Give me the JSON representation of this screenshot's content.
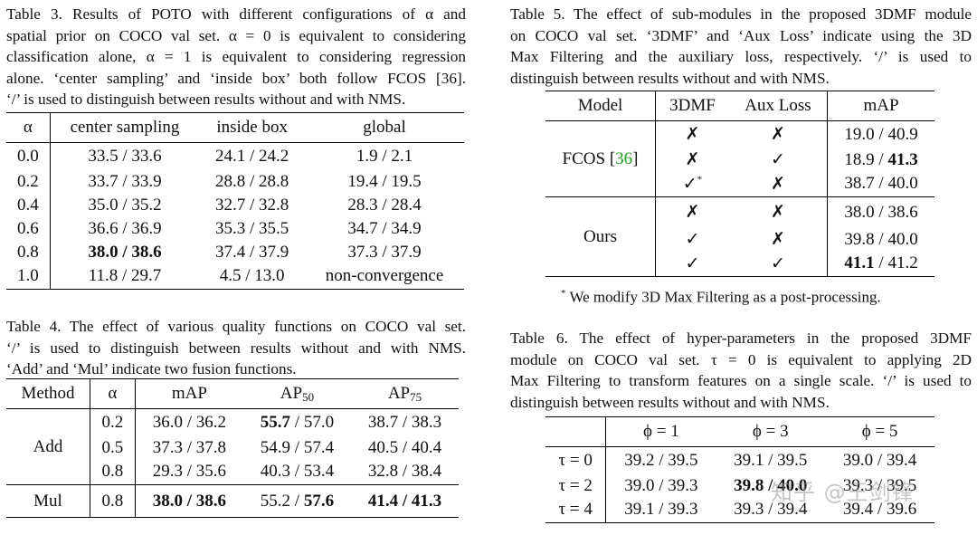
{
  "table3": {
    "caption": [
      "Table 3. Results of POTO with different configurations of α and",
      "spatial prior on COCO val set. α = 0 is equivalent to considering",
      "classification alone, α = 1 is equivalent to considering regression",
      "alone. ‘center sampling’ and ‘inside box’ both follow FCOS [36].",
      "‘/’ is used to distinguish between results without and with NMS."
    ],
    "headers": [
      "α",
      "center sampling",
      "inside box",
      "global"
    ],
    "rows": [
      [
        "0.0",
        "33.5 / 33.6",
        "24.1 / 24.2",
        "1.9 / 2.1"
      ],
      [
        "0.2",
        "33.7 / 33.9",
        "28.8 / 28.8",
        "19.4 / 19.5"
      ],
      [
        "0.4",
        "35.0 / 35.2",
        "32.7 / 32.8",
        "28.3 / 28.4"
      ],
      [
        "0.6",
        "36.6 / 36.9",
        "35.3 / 35.5",
        "34.7 / 34.9"
      ],
      [
        "0.8",
        "38.0 / 38.6",
        "37.4 / 37.9",
        "37.3 / 37.9"
      ],
      [
        "1.0",
        "11.8 / 29.7",
        "4.5 / 13.0",
        "non-convergence"
      ]
    ]
  },
  "table4": {
    "caption": [
      "Table 4. The effect of various quality functions on COCO val set.",
      "‘/’ is used to distinguish between results without and with NMS.",
      "‘Add’ and ‘Mul’ indicate two fusion functions."
    ],
    "headers": [
      "Method",
      "α",
      "mAP",
      "AP",
      "50",
      "AP",
      "75"
    ],
    "add_label": "Add",
    "add_rows": [
      [
        "0.2",
        "36.0 / 36.2",
        "55.7",
        " / 57.0",
        "38.7 / 38.3"
      ],
      [
        "0.5",
        "37.3 / 37.8",
        "54.9 / 57.4",
        "",
        "40.5 / 40.4"
      ],
      [
        "0.8",
        "29.3 / 35.6",
        "40.3 / 53.4",
        "",
        "32.8 / 38.4"
      ]
    ],
    "mul_label": "Mul",
    "mul_row": [
      "0.8",
      "38.0 / 38.6",
      "55.2 / ",
      "57.6",
      "41.4 / 41.3"
    ]
  },
  "table5": {
    "caption": [
      "Table 5. The effect of sub-modules in the proposed 3DMF module",
      "on COCO val set. ‘3DMF’ and ‘Aux Loss’ indicate using the 3D",
      "Max Filtering and the auxiliary loss, respectively. ‘/’ is used to",
      "distinguish between results without and with NMS."
    ],
    "headers": [
      "Model",
      "3DMF",
      "Aux Loss",
      "mAP"
    ],
    "fcos_label": "FCOS",
    "fcos_cite": "36",
    "fcos_rows": [
      {
        "dmf": "✗",
        "aux": "✗",
        "map_a": "19.0 / 40.9",
        "map_b": ""
      },
      {
        "dmf": "✗",
        "aux": "✓",
        "map_a": "18.9 / ",
        "map_b": "41.3"
      },
      {
        "dmf": "✓",
        "aux": "✗",
        "map_a": "38.7 / 40.0",
        "map_b": ""
      }
    ],
    "ours_label": "Ours",
    "ours_rows": [
      {
        "dmf": "✗",
        "aux": "✗",
        "map_a": "38.0 / 38.6",
        "map_b": ""
      },
      {
        "dmf": "✓",
        "aux": "✗",
        "map_a": "39.8 / 40.0",
        "map_b": ""
      },
      {
        "dmf": "✓",
        "aux": "✓",
        "map_a": "41.1",
        "map_b": " / 41.2"
      }
    ],
    "star": "*",
    "footnote": "We modify 3D Max Filtering as a post-processing."
  },
  "table6": {
    "caption": [
      "Table 6. The effect of hyper-parameters in the proposed 3DMF",
      "module on COCO val set. τ = 0 is equivalent to applying 2D",
      "Max Filtering to transform features on a single scale. ‘/’ is used to",
      "distinguish between results without and with NMS."
    ],
    "headers": [
      "",
      "ϕ = 1",
      "ϕ = 3",
      "ϕ = 5"
    ],
    "rows": [
      [
        "τ = 0",
        "39.2 / 39.5",
        "39.1 / 39.5",
        "39.0 / 39.4"
      ],
      [
        "τ = 2",
        "39.0 / 39.3",
        "39.8 / 40.0",
        "39.3 / 39.5"
      ],
      [
        "τ = 4",
        "39.1 / 39.3",
        "39.3 / 39.4",
        "39.4 / 39.6"
      ]
    ]
  },
  "watermark": "知乎 @王剑锋"
}
